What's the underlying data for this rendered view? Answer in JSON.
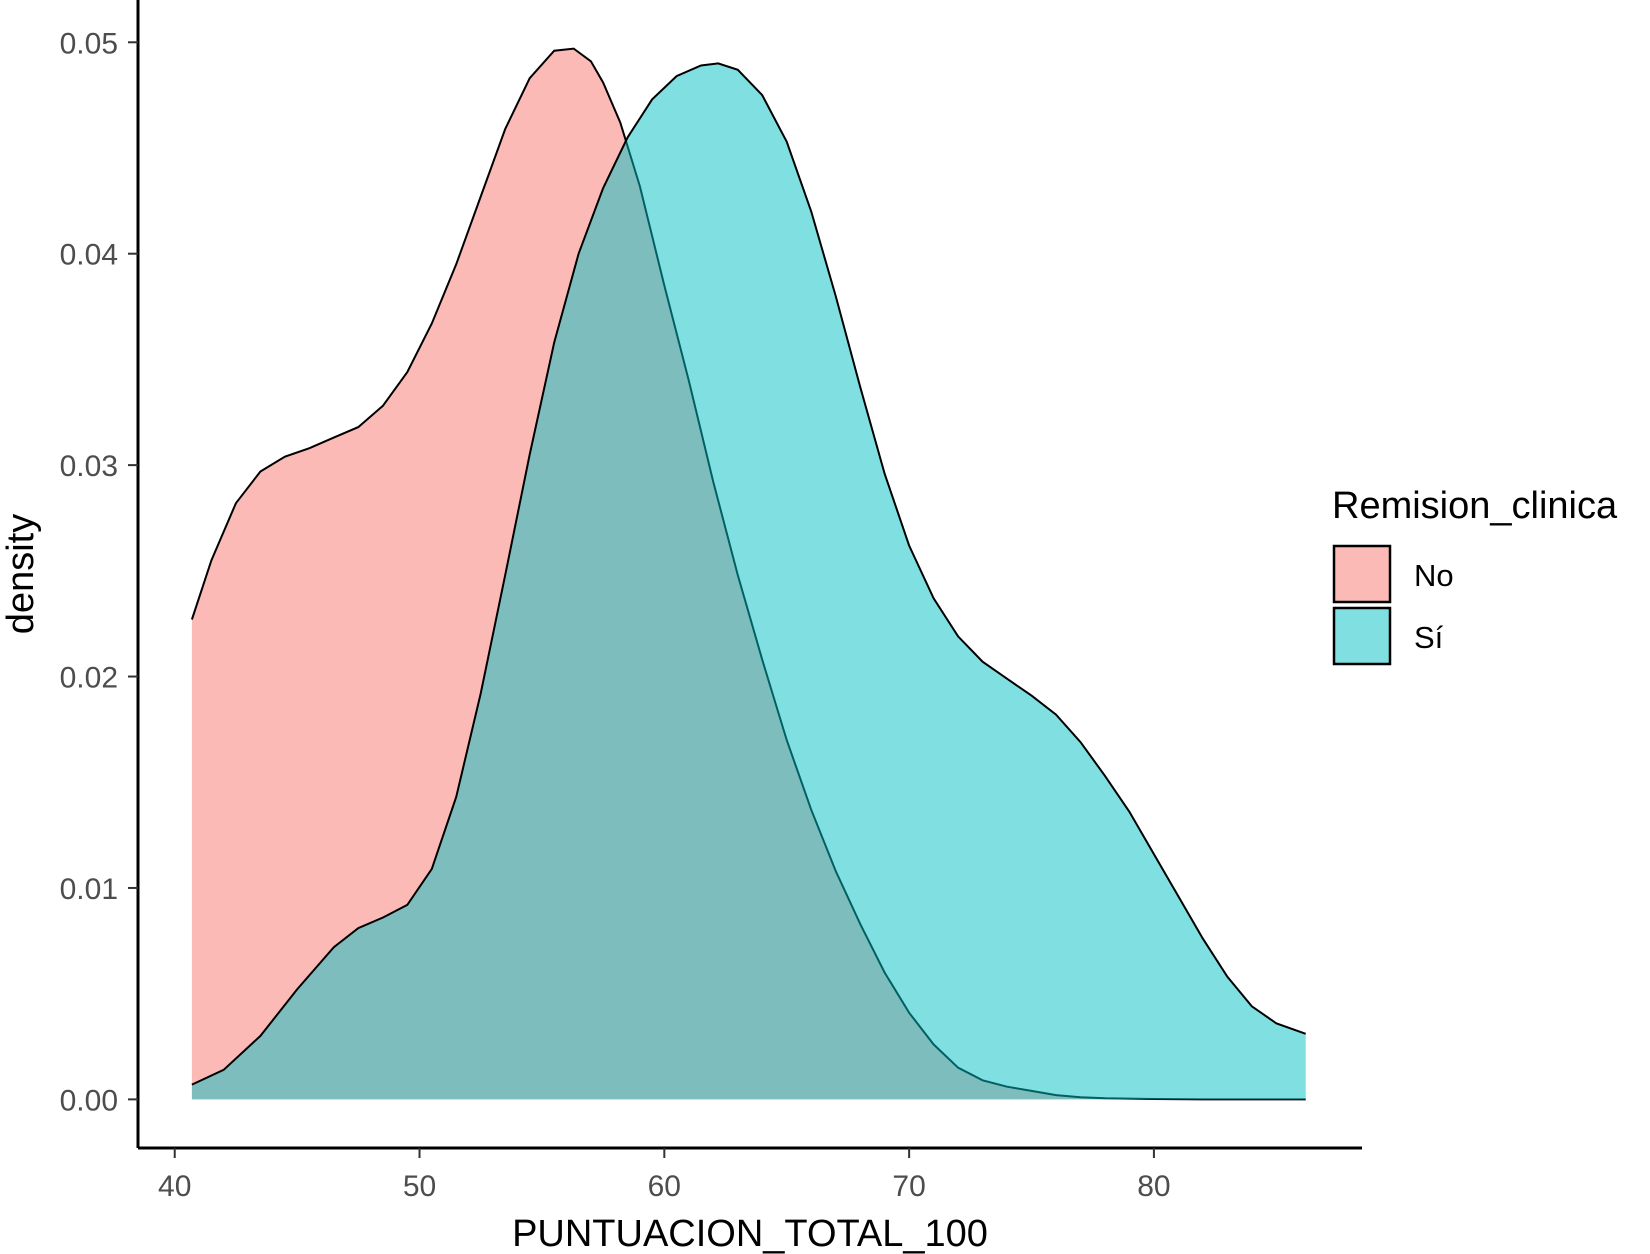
{
  "chart_data": {
    "type": "area",
    "title": "",
    "xlabel": "PUNTUACION_TOTAL_100",
    "ylabel": "density",
    "xlim": [
      38.5,
      88.5
    ],
    "ylim": [
      -0.0023,
      0.052
    ],
    "x_ticks": [
      40,
      50,
      60,
      70,
      80
    ],
    "x_tick_labels": [
      "40",
      "50",
      "60",
      "70",
      "80"
    ],
    "y_ticks": [
      0,
      0.01,
      0.02,
      0.03,
      0.04,
      0.05
    ],
    "y_tick_labels": [
      "0.00",
      "0.01",
      "0.02",
      "0.03",
      "0.04",
      "0.05"
    ],
    "grid": false,
    "legend": {
      "title": "Remision_clinica",
      "placement": "right"
    },
    "series": [
      {
        "name": "No",
        "color": "#F8766D",
        "opacity": 0.5,
        "x": [
          40.7,
          41.5,
          42.5,
          43.5,
          44.5,
          45.5,
          46.5,
          47.5,
          48.5,
          49.5,
          50.5,
          51.5,
          52.5,
          53.5,
          54.5,
          55.5,
          56.3,
          57.0,
          57.5,
          58.2,
          59.0,
          60.0,
          61.0,
          62.0,
          63.0,
          64.0,
          65.0,
          66.0,
          67.0,
          68.0,
          69.0,
          70.0,
          71.0,
          72.0,
          73.0,
          74.0,
          75.0,
          76.0,
          77.0,
          78.0,
          80.0,
          82.0,
          84.0,
          86.2
        ],
        "values": [
          0.0227,
          0.0255,
          0.0282,
          0.0297,
          0.0304,
          0.0308,
          0.0313,
          0.0318,
          0.0328,
          0.0344,
          0.0367,
          0.0395,
          0.0427,
          0.0459,
          0.0483,
          0.0496,
          0.0497,
          0.0491,
          0.0481,
          0.0462,
          0.0432,
          0.0385,
          0.034,
          0.0292,
          0.0248,
          0.0208,
          0.017,
          0.0137,
          0.0108,
          0.0083,
          0.006,
          0.0041,
          0.0026,
          0.0015,
          0.0009,
          0.0006,
          0.0004,
          0.0002,
          0.0001,
          5e-05,
          2e-05,
          0.0,
          0.0,
          0.0
        ]
      },
      {
        "name": "Sí",
        "color": "#00BFC4",
        "opacity": 0.5,
        "x": [
          40.7,
          42.0,
          43.5,
          45.0,
          46.5,
          47.5,
          48.5,
          49.5,
          50.5,
          51.5,
          52.5,
          53.5,
          54.5,
          55.5,
          56.5,
          57.5,
          58.5,
          59.5,
          60.5,
          61.5,
          62.2,
          63.0,
          64.0,
          65.0,
          66.0,
          67.0,
          68.0,
          69.0,
          70.0,
          71.0,
          72.0,
          73.0,
          74.0,
          75.0,
          76.0,
          77.0,
          78.0,
          79.0,
          80.0,
          81.0,
          82.0,
          83.0,
          84.0,
          85.0,
          86.2
        ],
        "values": [
          0.0007,
          0.0014,
          0.003,
          0.0052,
          0.0072,
          0.0081,
          0.0086,
          0.0092,
          0.0109,
          0.0143,
          0.0192,
          0.0248,
          0.0305,
          0.0358,
          0.04,
          0.0431,
          0.0455,
          0.0473,
          0.0484,
          0.0489,
          0.049,
          0.0487,
          0.0475,
          0.0453,
          0.042,
          0.038,
          0.0337,
          0.0296,
          0.0262,
          0.0237,
          0.0219,
          0.0207,
          0.0199,
          0.0191,
          0.0182,
          0.0169,
          0.0153,
          0.0136,
          0.0116,
          0.0096,
          0.0076,
          0.0058,
          0.0044,
          0.0036,
          0.0031
        ]
      }
    ]
  }
}
